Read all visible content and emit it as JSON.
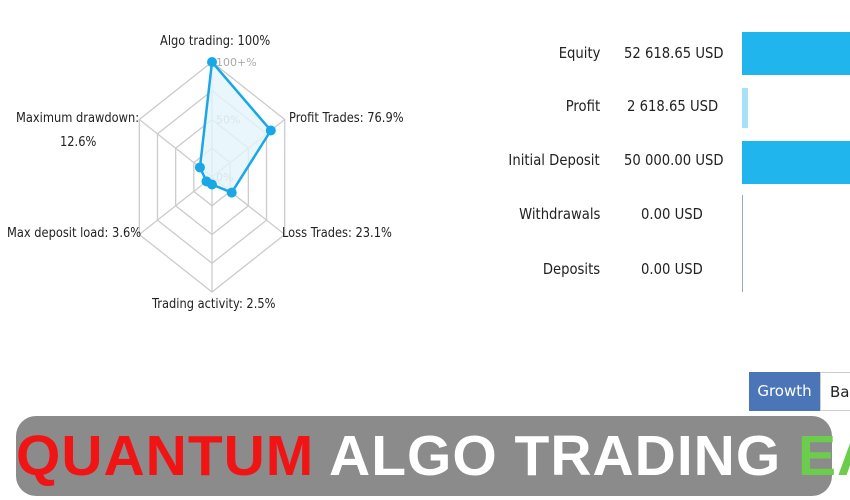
{
  "radar": {
    "axes": [
      {
        "label": "Algo trading: 100%",
        "value": 100
      },
      {
        "label": "Profit Trades: 76.9%",
        "value": 76.9
      },
      {
        "label": "Loss Trades: 23.1%",
        "value": 23.1
      },
      {
        "label": "Trading activity: 2.5%",
        "value": 2.5
      },
      {
        "label": "Max deposit load: 3.6%",
        "value": 3.6
      },
      {
        "label_line1": "Maximum drawdown:",
        "label_line2": "12.6%",
        "value": 12.6
      }
    ],
    "ticks": {
      "max": "100+%",
      "mid": "50%",
      "zero": "0%"
    },
    "colors": {
      "line": "#1aa7e6",
      "fill": "#e3f5fd",
      "grid": "#cccccc"
    }
  },
  "stats": [
    {
      "name": "Equity",
      "value": "52 618.65 USD",
      "bar_fraction": 1.0
    },
    {
      "name": "Profit",
      "value": "2 618.65 USD",
      "bar_fraction": 0.05
    },
    {
      "name": "Initial Deposit",
      "value": "50 000.00 USD",
      "bar_fraction": 0.95
    },
    {
      "name": "Withdrawals",
      "value": "0.00 USD",
      "bar_fraction": 0
    },
    {
      "name": "Deposits",
      "value": "0.00 USD",
      "bar_fraction": 0
    }
  ],
  "tabs": {
    "growth": "Growth",
    "balance": "Bal"
  },
  "banner": {
    "part1": "QUANTUM",
    "part2": "ALGO TRADING",
    "part3": "EA",
    "colors": {
      "part1": "#f01414",
      "part2": "#ffffff",
      "part3": "#6ccc4c"
    }
  }
}
